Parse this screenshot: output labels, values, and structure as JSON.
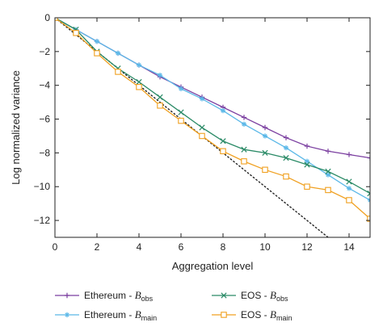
{
  "chart_data": {
    "type": "line",
    "xlabel": "Aggregation level",
    "ylabel": "Log normalized variance",
    "xlim": [
      0,
      15
    ],
    "ylim": [
      -13,
      0
    ],
    "xticks": [
      0,
      2,
      4,
      6,
      8,
      10,
      12,
      14
    ],
    "yticks": [
      0,
      -2,
      -4,
      -6,
      -8,
      -10,
      -12
    ],
    "x": [
      0,
      1,
      2,
      3,
      4,
      5,
      6,
      7,
      8,
      9,
      10,
      11,
      12,
      13,
      14,
      15
    ],
    "grid": false,
    "legend_placement": "bottom",
    "series": [
      {
        "name": "Ethereum - B_obs",
        "legend_prefix": "Ethereum - ",
        "legend_symbol": "B",
        "legend_sub": "obs",
        "color": "#7b3fa0",
        "marker": "plus",
        "values": [
          0,
          -0.7,
          -1.4,
          -2.1,
          -2.8,
          -3.5,
          -4.1,
          -4.7,
          -5.3,
          -5.9,
          -6.5,
          -7.1,
          -7.6,
          -7.9,
          -8.1,
          -8.3
        ]
      },
      {
        "name": "Ethereum - B_main",
        "legend_prefix": "Ethereum - ",
        "legend_symbol": "B",
        "legend_sub": "main",
        "color": "#5bb8e8",
        "marker": "star",
        "values": [
          0,
          -0.7,
          -1.4,
          -2.1,
          -2.8,
          -3.4,
          -4.2,
          -4.8,
          -5.5,
          -6.3,
          -7.0,
          -7.7,
          -8.5,
          -9.3,
          -10.1,
          -10.8
        ]
      },
      {
        "name": "EOS - B_obs",
        "legend_prefix": "EOS - ",
        "legend_symbol": "B",
        "legend_sub": "obs",
        "color": "#2a8a66",
        "marker": "x",
        "values": [
          0,
          -0.7,
          -2.0,
          -3.0,
          -3.8,
          -4.7,
          -5.6,
          -6.5,
          -7.3,
          -7.8,
          -8.0,
          -8.3,
          -8.7,
          -9.1,
          -9.7,
          -10.4
        ]
      },
      {
        "name": "EOS - B_main",
        "legend_prefix": "EOS - ",
        "legend_symbol": "B",
        "legend_sub": "main",
        "color": "#f0a020",
        "marker": "square",
        "values": [
          0,
          -0.9,
          -2.1,
          -3.2,
          -4.1,
          -5.2,
          -6.1,
          -7.0,
          -7.9,
          -8.5,
          -9.0,
          -9.4,
          -10.0,
          -10.2,
          -10.8,
          -11.9
        ]
      }
    ],
    "reference_line": {
      "style": "dotted",
      "color": "#222222",
      "x": [
        0,
        13
      ],
      "y": [
        0,
        -13
      ]
    }
  }
}
